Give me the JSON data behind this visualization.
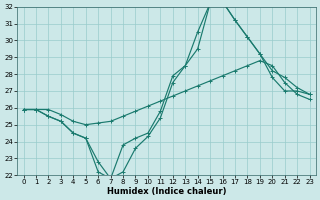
{
  "xlabel": "Humidex (Indice chaleur)",
  "x": [
    0,
    1,
    2,
    3,
    4,
    5,
    6,
    7,
    8,
    9,
    10,
    11,
    12,
    13,
    14,
    15,
    16,
    17,
    18,
    19,
    20,
    21,
    22,
    23
  ],
  "line1": [
    25.9,
    25.9,
    25.9,
    25.6,
    25.2,
    25.0,
    25.1,
    25.2,
    25.5,
    25.8,
    26.1,
    26.4,
    26.7,
    27.0,
    27.3,
    27.6,
    27.9,
    28.2,
    28.5,
    28.8,
    28.5,
    27.5,
    26.8,
    26.5
  ],
  "line2": [
    25.9,
    25.9,
    25.5,
    25.2,
    24.5,
    24.2,
    22.2,
    21.8,
    22.2,
    23.6,
    24.3,
    25.4,
    27.5,
    28.5,
    30.5,
    32.2,
    32.3,
    31.2,
    30.2,
    29.2,
    27.8,
    27.0,
    27.0,
    26.8
  ],
  "line3": [
    25.9,
    25.9,
    25.5,
    25.2,
    24.5,
    24.2,
    22.8,
    21.8,
    23.8,
    24.2,
    24.5,
    25.8,
    27.9,
    28.5,
    29.5,
    32.2,
    32.3,
    31.2,
    30.2,
    29.2,
    28.2,
    27.8,
    27.2,
    26.8
  ],
  "ylim_min": 22,
  "ylim_max": 32,
  "xlim_min": -0.5,
  "xlim_max": 23.5,
  "yticks": [
    22,
    23,
    24,
    25,
    26,
    27,
    28,
    29,
    30,
    31,
    32
  ],
  "xticks": [
    0,
    1,
    2,
    3,
    4,
    5,
    6,
    7,
    8,
    9,
    10,
    11,
    12,
    13,
    14,
    15,
    16,
    17,
    18,
    19,
    20,
    21,
    22,
    23
  ],
  "line_color": "#1a7a6e",
  "bg_color": "#cce8e8",
  "grid_color": "#99cccc",
  "tick_fontsize": 5,
  "xlabel_fontsize": 6
}
